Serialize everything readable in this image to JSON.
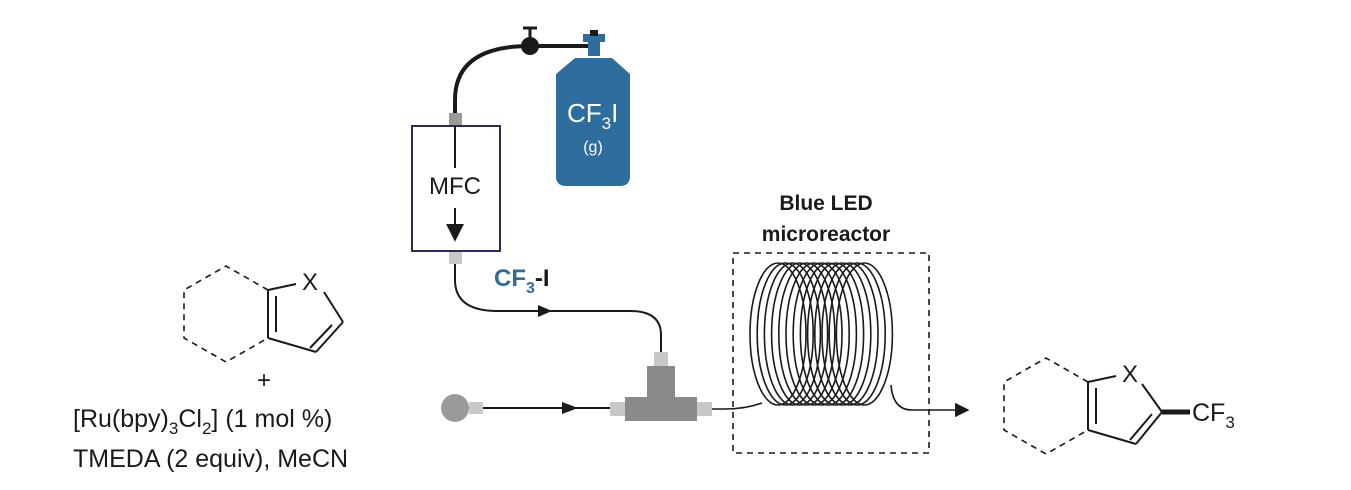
{
  "gas_cylinder": {
    "formula_main": "CF",
    "formula_sub": "3",
    "formula_tail": "I",
    "state": "(g)"
  },
  "mfc": {
    "label": "MFC"
  },
  "gas_stream": {
    "main": "CF",
    "sub": "3",
    "tail": "-I"
  },
  "reactor": {
    "line1": "Blue LED",
    "line2": "microreactor"
  },
  "reactants": {
    "heteroatom": "X",
    "plus": "+",
    "catalyst_pre": "[Ru(bpy)",
    "catalyst_sub1": "3",
    "catalyst_mid": "Cl",
    "catalyst_sub2": "2",
    "catalyst_post": "] (1 mol %)",
    "conditions": "TMEDA (2 equiv), MeCN"
  },
  "product": {
    "heteroatom": "X",
    "group_main": "CF",
    "group_sub": "3"
  },
  "colors": {
    "cylinder": "#2e6e9e",
    "stream_label": "#2e6e9e",
    "tee": "#8a8a8a",
    "line": "#1a1a1a"
  }
}
